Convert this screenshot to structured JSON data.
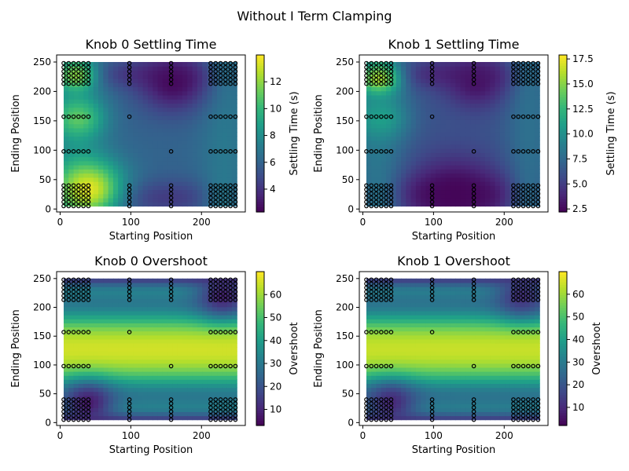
{
  "figure": {
    "suptitle": "Without I Term Clamping"
  },
  "colormap": {
    "name": "viridis",
    "stops": [
      "#440154",
      "#482878",
      "#3e4a89",
      "#31688e",
      "#26828e",
      "#1f9e89",
      "#35b779",
      "#6ece58",
      "#b5de2b",
      "#fde725"
    ]
  },
  "chart_data": [
    {
      "type": "heatmap",
      "title": "Knob 0 Settling Time",
      "xlabel": "Starting Position",
      "ylabel": "Ending Position",
      "xlim": [
        -5,
        262
      ],
      "ylim": [
        -5,
        262
      ],
      "xticks": [
        0,
        100,
        200
      ],
      "yticks": [
        0,
        50,
        100,
        150,
        200,
        250
      ],
      "colorbar": {
        "label": "Settling Time (s)",
        "range": [
          2.3,
          14.0
        ],
        "ticks": [
          4,
          6,
          8,
          10,
          12
        ]
      },
      "value_field": {
        "base": 6.0,
        "bands": [
          {
            "axis": "y",
            "center": 230,
            "width": 18,
            "value": 4.2
          },
          {
            "axis": "y",
            "center": 20,
            "width": 22,
            "value": 4.3
          },
          {
            "axis": "x",
            "center": 22,
            "width": 30,
            "value": 7.5
          },
          {
            "axis": "x",
            "center": 232,
            "width": 25,
            "value": 7.0
          }
        ],
        "hotspots": [
          {
            "x": 40,
            "y": 35,
            "r": 35,
            "value": 13.5
          },
          {
            "x": 25,
            "y": 155,
            "r": 25,
            "value": 11.0
          },
          {
            "x": 22,
            "y": 228,
            "r": 18,
            "value": 12.0
          },
          {
            "x": 160,
            "y": 215,
            "r": 35,
            "value": 2.6
          }
        ]
      }
    },
    {
      "type": "heatmap",
      "title": "Knob 1 Settling Time",
      "xlabel": "Starting Position",
      "ylabel": "Ending Position",
      "xlim": [
        -5,
        262
      ],
      "ylim": [
        -5,
        262
      ],
      "xticks": [
        0,
        100,
        200
      ],
      "yticks": [
        0,
        50,
        100,
        150,
        200,
        250
      ],
      "colorbar": {
        "label": "Settling Time (s)",
        "range": [
          2.2,
          17.9
        ],
        "ticks": [
          2.5,
          5.0,
          7.5,
          10.0,
          12.5,
          15.0,
          17.5
        ]
      },
      "value_field": {
        "base": 6.2,
        "bands": [
          {
            "axis": "y",
            "center": 230,
            "width": 18,
            "value": 4.0
          },
          {
            "axis": "y",
            "center": 25,
            "width": 25,
            "value": 3.2
          },
          {
            "axis": "x",
            "center": 22,
            "width": 30,
            "value": 8.5
          },
          {
            "axis": "x",
            "center": 235,
            "width": 25,
            "value": 8.0
          }
        ],
        "hotspots": [
          {
            "x": 22,
            "y": 222,
            "r": 20,
            "value": 16.0
          },
          {
            "x": 25,
            "y": 155,
            "r": 25,
            "value": 11.0
          },
          {
            "x": 130,
            "y": 25,
            "r": 45,
            "value": 2.4
          },
          {
            "x": 160,
            "y": 215,
            "r": 30,
            "value": 3.0
          }
        ]
      }
    },
    {
      "type": "heatmap",
      "title": "Knob 0 Overshoot",
      "xlabel": "Starting Position",
      "ylabel": "Ending Position",
      "xlim": [
        -5,
        262
      ],
      "ylim": [
        -5,
        262
      ],
      "xticks": [
        0,
        100,
        200
      ],
      "yticks": [
        0,
        50,
        100,
        150,
        200,
        250
      ],
      "colorbar": {
        "label": "Overshoot",
        "range": [
          3,
          70
        ],
        "ticks": [
          10,
          20,
          30,
          40,
          50,
          60
        ]
      },
      "value_field": {
        "base": 67,
        "bands": [
          {
            "axis": "y",
            "center": 250,
            "width": 16,
            "value": 4
          },
          {
            "axis": "y",
            "center": 5,
            "width": 16,
            "value": 4
          },
          {
            "axis": "y",
            "center": 210,
            "width": 30,
            "value": 30
          },
          {
            "axis": "y",
            "center": 45,
            "width": 30,
            "value": 30
          }
        ],
        "hotspots": [
          {
            "x": 40,
            "y": 35,
            "r": 25,
            "value": 8
          },
          {
            "x": 230,
            "y": 220,
            "r": 25,
            "value": 10
          }
        ]
      }
    },
    {
      "type": "heatmap",
      "title": "Knob 1 Overshoot",
      "xlabel": "Starting Position",
      "ylabel": "Ending Position",
      "xlim": [
        -5,
        262
      ],
      "ylim": [
        -5,
        262
      ],
      "xticks": [
        0,
        100,
        200
      ],
      "yticks": [
        0,
        50,
        100,
        150,
        200,
        250
      ],
      "colorbar": {
        "label": "Overshoot",
        "range": [
          2,
          70
        ],
        "ticks": [
          10,
          20,
          30,
          40,
          50,
          60
        ]
      },
      "value_field": {
        "base": 66,
        "bands": [
          {
            "axis": "y",
            "center": 250,
            "width": 16,
            "value": 4
          },
          {
            "axis": "y",
            "center": 5,
            "width": 16,
            "value": 4
          },
          {
            "axis": "y",
            "center": 210,
            "width": 30,
            "value": 28
          },
          {
            "axis": "y",
            "center": 45,
            "width": 30,
            "value": 28
          }
        ],
        "hotspots": [
          {
            "x": 40,
            "y": 35,
            "r": 25,
            "value": 10
          },
          {
            "x": 225,
            "y": 220,
            "r": 25,
            "value": 12
          }
        ]
      }
    }
  ],
  "sample_points": {
    "x_values": [
      5,
      12,
      19,
      26,
      33,
      40,
      98,
      157,
      213,
      220,
      227,
      234,
      241,
      248
    ],
    "y_values": [
      5,
      12,
      19,
      26,
      33,
      40,
      98,
      157,
      213,
      220,
      227,
      234,
      241,
      248
    ],
    "dense_x": [
      5,
      12,
      19,
      26,
      33,
      40,
      213,
      220,
      227,
      234,
      241,
      248
    ],
    "dense_y": [
      5,
      12,
      19,
      26,
      33,
      40,
      213,
      220,
      227,
      234,
      241,
      248
    ],
    "middle_x": [
      98,
      157
    ],
    "middle_y": [
      98,
      157
    ]
  }
}
